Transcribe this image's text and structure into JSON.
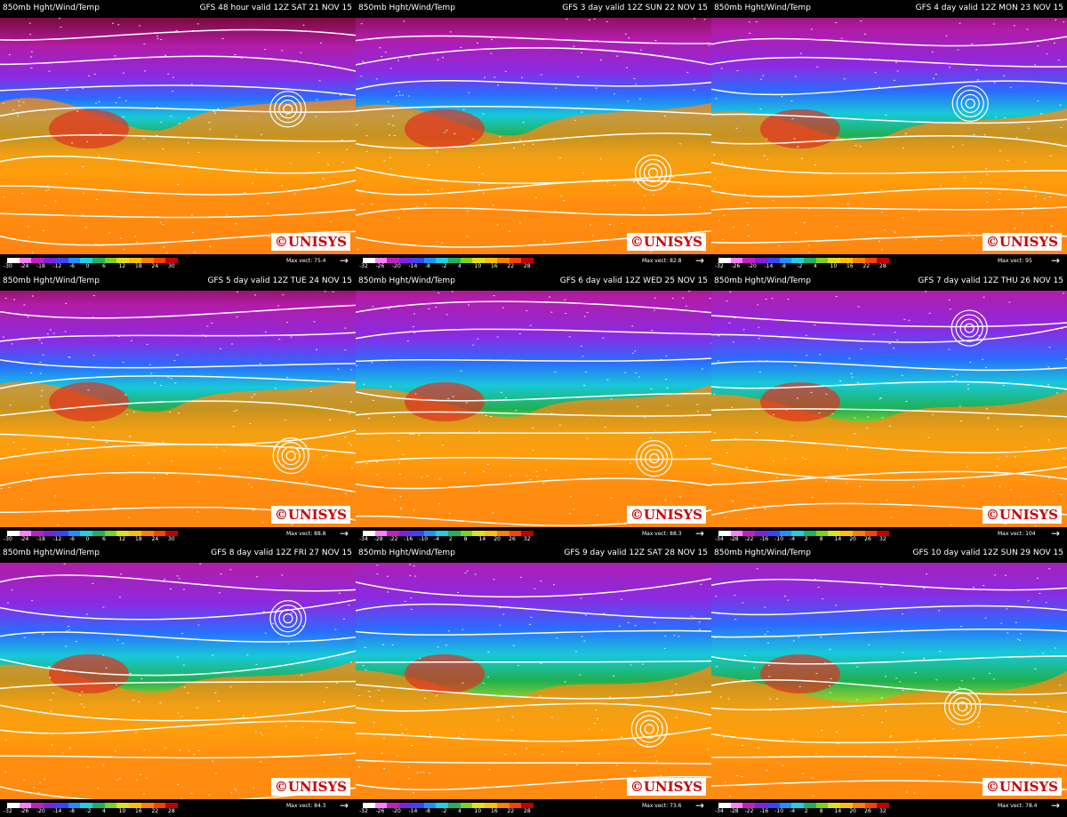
{
  "panels": [
    {
      "product": "850mb Hght/Wind/Temp",
      "valid": "GFS 48 hour valid 12Z SAT 21 NOV 15",
      "scale": [
        -30,
        -24,
        -18,
        -12,
        -6,
        0,
        6,
        12,
        18,
        24,
        30
      ],
      "max_vect": "Max vect: 75.4",
      "logo": "©UNISYS"
    },
    {
      "product": "850mb Hght/Wind/Temp",
      "valid": "GFS 3 day valid 12Z SUN 22 NOV 15",
      "scale": [
        -32,
        -26,
        -20,
        -14,
        -8,
        -2,
        4,
        10,
        16,
        22,
        28
      ],
      "max_vect": "Max vect: 82.8",
      "logo": "©UNISYS"
    },
    {
      "product": "850mb Hght/Wind/Temp",
      "valid": "GFS 4 day valid 12Z MON 23 NOV 15",
      "scale": [
        -32,
        -26,
        -20,
        -14,
        -8,
        -2,
        4,
        10,
        16,
        22,
        28
      ],
      "max_vect": "Max vect: 95",
      "logo": "©UNISYS"
    },
    {
      "product": "850mb Hght/Wind/Temp",
      "valid": "GFS 5 day valid 12Z TUE 24 NOV 15",
      "scale": [
        -30,
        -24,
        -18,
        -12,
        -6,
        0,
        6,
        12,
        18,
        24,
        30
      ],
      "max_vect": "Max vect: 88.8",
      "logo": "©UNISYS"
    },
    {
      "product": "850mb Hght/Wind/Temp",
      "valid": "GFS 6 day valid 12Z WED 25 NOV 15",
      "scale": [
        -34,
        -28,
        -22,
        -16,
        -10,
        -4,
        2,
        8,
        14,
        20,
        26,
        32
      ],
      "max_vect": "Max vect: 88.3",
      "logo": "©UNISYS"
    },
    {
      "product": "850mb Hght/Wind/Temp",
      "valid": "GFS 7 day valid 12Z THU 26 NOV 15",
      "scale": [
        -34,
        -28,
        -22,
        -16,
        -10,
        -4,
        2,
        8,
        14,
        20,
        26,
        32
      ],
      "max_vect": "Max vect: 104",
      "logo": "©UNISYS"
    },
    {
      "product": "850mb Hght/Wind/Temp",
      "valid": "GFS 8 day valid 12Z FRI 27 NOV 15",
      "scale": [
        -32,
        -26,
        -20,
        -14,
        -8,
        -2,
        4,
        10,
        16,
        22,
        28
      ],
      "max_vect": "Max vect: 84.3",
      "logo": "©UNISYS"
    },
    {
      "product": "850mb Hght/Wind/Temp",
      "valid": "GFS 9 day valid 12Z SAT 28 NOV 15",
      "scale": [
        -32,
        -26,
        -20,
        -14,
        -8,
        -2,
        4,
        10,
        16,
        22,
        28
      ],
      "max_vect": "Max vect: 73.6",
      "logo": "©UNISYS"
    },
    {
      "product": "850mb Hght/Wind/Temp",
      "valid": "GFS 10 day valid 12Z SUN 29 NOV 15",
      "scale": [
        -34,
        -28,
        -22,
        -16,
        -10,
        -4,
        2,
        8,
        14,
        20,
        26,
        32
      ],
      "max_vect": "Max vect: 78.4",
      "logo": "©UNISYS"
    }
  ]
}
